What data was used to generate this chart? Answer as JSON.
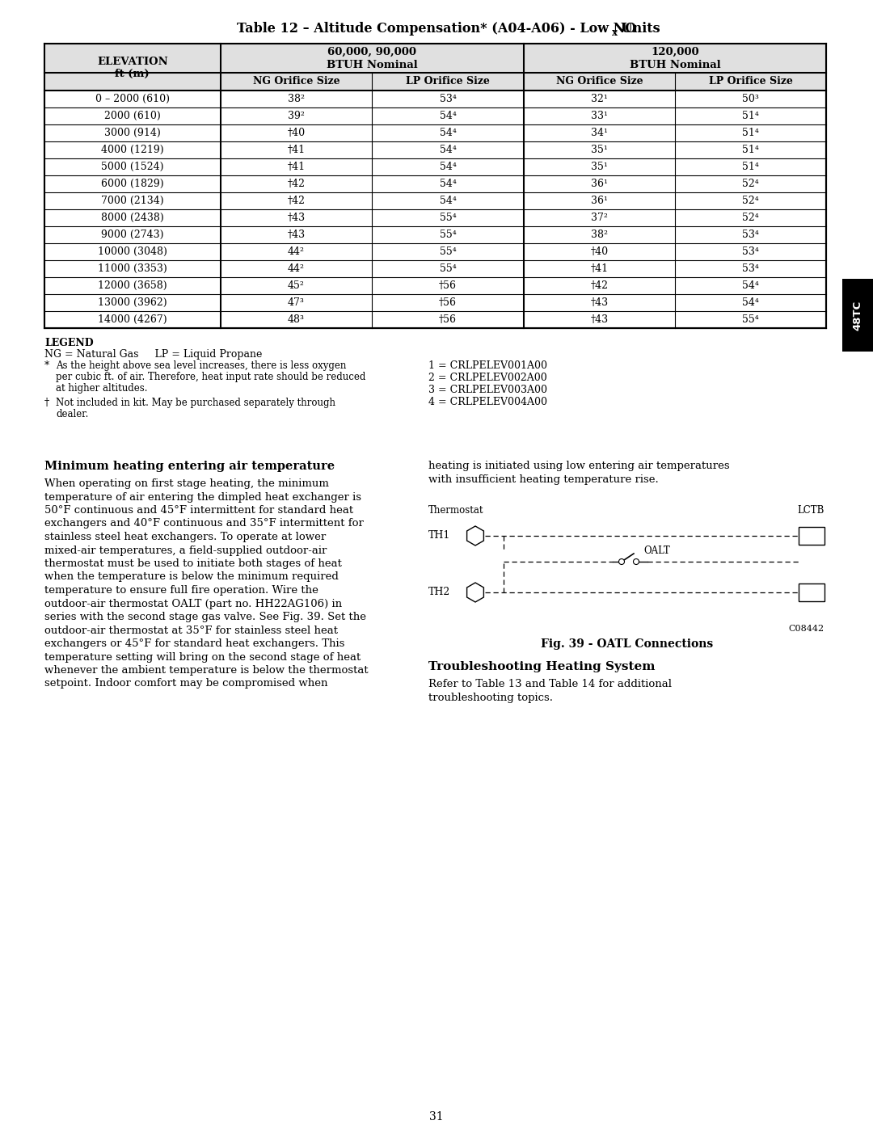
{
  "title_main": "Table 12 – Altitude Compensation* (A04-A06) - Low NO",
  "title_x_sub": "x",
  "title_end": " Units",
  "bg_color": "#ffffff",
  "table_data": [
    [
      "0 – 2000 (610)",
      "38²",
      "53⁴",
      "32¹",
      "50³"
    ],
    [
      "2000 (610)",
      "39²",
      "54⁴",
      "33¹",
      "51⁴"
    ],
    [
      "3000 (914)",
      "⁀40",
      "54⁴",
      "34¹",
      "51⁴"
    ],
    [
      "4000 (1219)",
      "⁀41",
      "54⁴",
      "35¹",
      "51⁴"
    ],
    [
      "5000 (1524)",
      "⁀41",
      "54⁴",
      "35¹",
      "51⁴"
    ],
    [
      "6000 (1829)",
      "⁀42",
      "54⁴",
      "36¹",
      "52⁴"
    ],
    [
      "7000 (2134)",
      "⁀42",
      "54⁴",
      "36¹",
      "52⁴"
    ],
    [
      "8000 (2438)",
      "⁀43",
      "55⁴",
      "37²",
      "52⁴"
    ],
    [
      "9000 (2743)",
      "⁀43",
      "55⁴",
      "38²",
      "53⁴"
    ],
    [
      "10000 (3048)",
      "44²",
      "55⁴",
      "⁀40",
      "53⁴"
    ],
    [
      "11000 (3353)",
      "44²",
      "55⁴",
      "⁀41",
      "53⁴"
    ],
    [
      "12000 (3658)",
      "45²",
      "†56",
      "⁀42",
      "54⁴"
    ],
    [
      "13000 (3962)",
      "47³",
      "†56",
      "⁀43",
      "54⁴"
    ],
    [
      "14000 (4267)",
      "48³",
      "†56",
      "⁀43",
      "55⁴"
    ]
  ],
  "legend_line1": "LEGEND",
  "legend_line2": "NG = Natural Gas     LP = Liquid Propane",
  "legend_star_bullet": "*",
  "legend_star_text": "As the height above sea level increases, there is less oxygen\nper cubic ft. of air. Therefore, heat input rate should be reduced\nat higher altitudes.",
  "legend_dagger_bullet": "†",
  "legend_dagger_text": "Not included in kit. May be purchased separately through\ndealer.",
  "legend_right1": "1 = CRLPELEV001A00",
  "legend_right2": "2 = CRLPELEV002A00",
  "legend_right3": "3 = CRLPELEV003A00",
  "legend_right4": "4 = CRLPELEV004A00",
  "section_heading": "Minimum heating entering air temperature",
  "section_lines": [
    "When operating on first stage heating, the minimum",
    "temperature of air entering the dimpled heat exchanger is",
    "50°F continuous and 45°F intermittent for standard heat",
    "exchangers and 40°F continuous and 35°F intermittent for",
    "stainless steel heat exchangers. To operate at lower",
    "mixed-air temperatures, a field-supplied outdoor-air",
    "thermostat must be used to initiate both stages of heat",
    "when the temperature is below the minimum required",
    "temperature to ensure full fire operation. Wire the",
    "outdoor-air thermostat OALT (part no. HH22AG106) in",
    "series with the second stage gas valve. See Fig. 39. Set the",
    "outdoor-air thermostat at 35°F for stainless steel heat",
    "exchangers or 45°F for standard heat exchangers. This",
    "temperature setting will bring on the second stage of heat",
    "whenever the ambient temperature is below the thermostat",
    "setpoint. Indoor comfort may be compromised when"
  ],
  "right_col_lines": [
    "heating is initiated using low entering air temperatures",
    "with insufficient heating temperature rise."
  ],
  "fig_caption": "Fig. 39 - OATL Connections",
  "fig_code": "C08442",
  "trouble_heading": "Troubleshooting Heating System",
  "trouble_lines": [
    "Refer to Table 13 and Table 14 for additional",
    "troubleshooting topics."
  ],
  "page_number": "31",
  "tab_label": "48TC",
  "col_ratios": [
    0.225,
    0.194,
    0.194,
    0.194,
    0.194
  ]
}
